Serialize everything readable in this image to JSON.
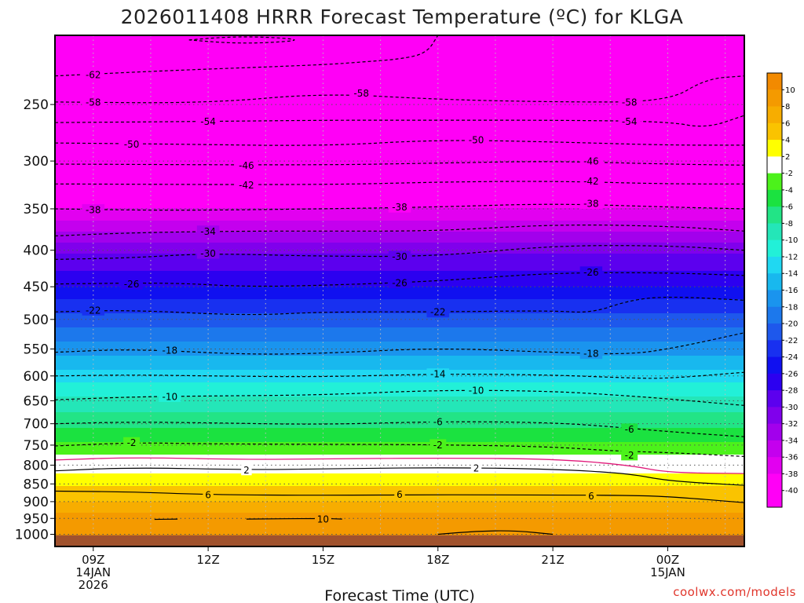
{
  "chart_data": {
    "type": "heatmap",
    "title": "2026011408 HRRR Forecast Temperature (ºC) for KLGA",
    "xlabel": "Forecast Time (UTC)",
    "ylabel": "",
    "credit": "coolwx.com/models",
    "x_range_hours": [
      8,
      26
    ],
    "x_ticks": [
      {
        "hour": 9,
        "lines": [
          "09Z",
          "14JAN",
          "2026"
        ]
      },
      {
        "hour": 12,
        "lines": [
          "12Z"
        ]
      },
      {
        "hour": 15,
        "lines": [
          "15Z"
        ]
      },
      {
        "hour": 18,
        "lines": [
          "18Z"
        ]
      },
      {
        "hour": 21,
        "lines": [
          "21Z"
        ]
      },
      {
        "hour": 24,
        "lines": [
          "00Z",
          "15JAN"
        ]
      }
    ],
    "y_axis": {
      "scale": "log-pressure",
      "inverted": true,
      "range_hpa": [
        1040,
        200
      ]
    },
    "y_ticks": [
      250,
      300,
      350,
      400,
      450,
      500,
      550,
      600,
      650,
      700,
      750,
      800,
      850,
      900,
      950,
      1000
    ],
    "colorbar": {
      "ticks": [
        10,
        8,
        6,
        4,
        2,
        -2,
        -4,
        -6,
        -8,
        -10,
        -12,
        -14,
        -16,
        -18,
        -20,
        -22,
        -24,
        -26,
        -28,
        -30,
        -32,
        -34,
        -36,
        -38,
        -40
      ],
      "colors": [
        "#f28a00",
        "#f49a00",
        "#f7ad00",
        "#fac300",
        "#ffff00",
        "#ffffff",
        "#4cf21b",
        "#1be240",
        "#22e486",
        "#24e6b8",
        "#22f0d8",
        "#20d8f2",
        "#18b8ee",
        "#1a94ee",
        "#1c78ec",
        "#1e58ec",
        "#1830f0",
        "#1010f0",
        "#2c00f0",
        "#5c00ee",
        "#8000ec",
        "#a200ec",
        "#c400ee",
        "#e200f0",
        "#ff00f6"
      ]
    },
    "levels": [
      {
        "p": 1000,
        "t": 9.0
      },
      {
        "p": 975,
        "t": 9.5
      },
      {
        "p": 950,
        "t": 9.0
      },
      {
        "p": 925,
        "t": 7.5
      },
      {
        "p": 900,
        "t": 6.0
      },
      {
        "p": 875,
        "t": 5.0
      },
      {
        "p": 850,
        "t": 3.8
      },
      {
        "p": 825,
        "t": 2.5
      },
      {
        "p": 800,
        "t": 0.0
      },
      {
        "p": 775,
        "t": -2.0
      },
      {
        "p": 750,
        "t": -3.5
      },
      {
        "p": 725,
        "t": -5.0
      },
      {
        "p": 700,
        "t": -6.5
      },
      {
        "p": 650,
        "t": -9.5
      },
      {
        "p": 600,
        "t": -13.0
      },
      {
        "p": 550,
        "t": -17.0
      },
      {
        "p": 500,
        "t": -21.0
      },
      {
        "p": 450,
        "t": -26.0
      },
      {
        "p": 400,
        "t": -30.5
      },
      {
        "p": 350,
        "t": -38.0
      },
      {
        "p": 300,
        "t": -46.0
      },
      {
        "p": 250,
        "t": -57.0
      },
      {
        "p": 200,
        "t": -62.0
      }
    ],
    "contours": [
      {
        "value": 10,
        "style": "solid",
        "points": [
          [
            10.6,
            953
          ],
          [
            11.2,
            952
          ]
        ],
        "labels": []
      },
      {
        "value": 10,
        "style": "solid",
        "points": [
          [
            13.0,
            952
          ],
          [
            15.0,
            950
          ],
          [
            15.5,
            952
          ]
        ],
        "labels": [
          {
            "hour": 15.0,
            "p": 952
          }
        ]
      },
      {
        "value": 10,
        "style": "solid",
        "points": [
          [
            18.0,
            1000
          ],
          [
            19.0,
            990
          ],
          [
            20.0,
            988
          ],
          [
            21.0,
            1000
          ]
        ],
        "labels": []
      },
      {
        "value": 6,
        "style": "solid",
        "points": [
          [
            8,
            870
          ],
          [
            10,
            872
          ],
          [
            12,
            880
          ],
          [
            15,
            882
          ],
          [
            18,
            880
          ],
          [
            21,
            881
          ],
          [
            23,
            882
          ],
          [
            24,
            885
          ],
          [
            26,
            903
          ]
        ],
        "labels": [
          {
            "hour": 12.0,
            "p": 880
          },
          {
            "hour": 17.0,
            "p": 879
          },
          {
            "hour": 22.0,
            "p": 883
          }
        ]
      },
      {
        "value": 2,
        "style": "solid",
        "points": [
          [
            8,
            815
          ],
          [
            10,
            806
          ],
          [
            13,
            812
          ],
          [
            15,
            810
          ],
          [
            18,
            806
          ],
          [
            21,
            810
          ],
          [
            23,
            822
          ],
          [
            24,
            842
          ],
          [
            26,
            854
          ]
        ],
        "labels": [
          {
            "hour": 13.0,
            "p": 812
          },
          {
            "hour": 19.0,
            "p": 807
          }
        ]
      },
      {
        "value": 0,
        "style": "magenta",
        "points": [
          [
            8,
            787
          ],
          [
            10,
            780
          ],
          [
            13,
            786
          ],
          [
            15,
            784
          ],
          [
            18,
            782
          ],
          [
            21,
            784
          ],
          [
            23,
            800
          ],
          [
            24,
            820
          ],
          [
            26,
            822
          ]
        ],
        "labels": []
      },
      {
        "value": -2,
        "style": "dashed",
        "points": [
          [
            8,
            752
          ],
          [
            10,
            744
          ],
          [
            12,
            747
          ],
          [
            15,
            748
          ],
          [
            18,
            749
          ],
          [
            21,
            754
          ],
          [
            22.5,
            764
          ],
          [
            24,
            768
          ],
          [
            26,
            778
          ]
        ],
        "labels": [
          {
            "hour": 10.0,
            "p": 744
          },
          {
            "hour": 18.0,
            "p": 749
          },
          {
            "hour": 23.0,
            "p": 774
          }
        ]
      },
      {
        "value": -6,
        "style": "dashed",
        "points": [
          [
            8,
            700
          ],
          [
            10,
            696
          ],
          [
            12,
            698
          ],
          [
            15,
            702
          ],
          [
            18,
            695
          ],
          [
            21,
            697
          ],
          [
            23,
            710
          ],
          [
            24,
            718
          ],
          [
            26,
            730
          ]
        ],
        "labels": [
          {
            "hour": 18.0,
            "p": 695
          },
          {
            "hour": 23.0,
            "p": 712
          }
        ]
      },
      {
        "value": -10,
        "style": "dashed",
        "points": [
          [
            8,
            648
          ],
          [
            10,
            642
          ],
          [
            12,
            640
          ],
          [
            15,
            638
          ],
          [
            18,
            628
          ],
          [
            21,
            630
          ],
          [
            23,
            640
          ],
          [
            24,
            646
          ],
          [
            26,
            660
          ]
        ],
        "labels": [
          {
            "hour": 11.0,
            "p": 641
          },
          {
            "hour": 19.0,
            "p": 628
          }
        ]
      },
      {
        "value": -14,
        "style": "dashed",
        "points": [
          [
            8,
            600
          ],
          [
            10,
            598
          ],
          [
            12,
            600
          ],
          [
            15,
            602
          ],
          [
            18,
            596
          ],
          [
            21,
            598
          ],
          [
            23,
            604
          ],
          [
            24,
            605
          ],
          [
            26,
            593
          ]
        ],
        "labels": [
          {
            "hour": 18.0,
            "p": 596
          }
        ]
      },
      {
        "value": -18,
        "style": "dashed",
        "points": [
          [
            8,
            556
          ],
          [
            10,
            550
          ],
          [
            13,
            560
          ],
          [
            15,
            558
          ],
          [
            18,
            548
          ],
          [
            21,
            556
          ],
          [
            23,
            560
          ],
          [
            24.2,
            548
          ],
          [
            26,
            522
          ]
        ],
        "labels": [
          {
            "hour": 11.0,
            "p": 552
          },
          {
            "hour": 22.0,
            "p": 558
          }
        ]
      },
      {
        "value": -22,
        "style": "dashed",
        "points": [
          [
            8,
            488
          ],
          [
            10,
            485
          ],
          [
            13,
            494
          ],
          [
            15,
            488
          ],
          [
            18,
            488
          ],
          [
            21,
            486
          ],
          [
            22,
            490
          ],
          [
            23,
            470
          ],
          [
            24,
            464
          ],
          [
            26,
            470
          ]
        ],
        "labels": [
          {
            "hour": 9.0,
            "p": 485
          },
          {
            "hour": 18.0,
            "p": 488
          }
        ]
      },
      {
        "value": -26,
        "style": "dashed",
        "points": [
          [
            8,
            446
          ],
          [
            11,
            444
          ],
          [
            13,
            450
          ],
          [
            15,
            448
          ],
          [
            18,
            442
          ],
          [
            21,
            430
          ],
          [
            24,
            430
          ],
          [
            26,
            434
          ]
        ],
        "labels": [
          {
            "hour": 10.0,
            "p": 446
          },
          {
            "hour": 17.0,
            "p": 444
          },
          {
            "hour": 22.0,
            "p": 429
          }
        ]
      },
      {
        "value": -30,
        "style": "dashed",
        "points": [
          [
            8,
            412
          ],
          [
            10,
            410
          ],
          [
            12,
            404
          ],
          [
            15,
            408
          ],
          [
            18,
            408
          ],
          [
            21,
            394
          ],
          [
            24,
            394
          ],
          [
            26,
            400
          ]
        ],
        "labels": [
          {
            "hour": 12.0,
            "p": 404
          },
          {
            "hour": 17.0,
            "p": 408
          }
        ]
      },
      {
        "value": -34,
        "style": "dashed",
        "points": [
          [
            8,
            382
          ],
          [
            10,
            378
          ],
          [
            13,
            376
          ],
          [
            15,
            376
          ],
          [
            18,
            376
          ],
          [
            21,
            368
          ],
          [
            24,
            370
          ],
          [
            26,
            376
          ]
        ],
        "labels": [
          {
            "hour": 12.0,
            "p": 376
          }
        ]
      },
      {
        "value": -38,
        "style": "dashed",
        "points": [
          [
            8,
            350
          ],
          [
            11,
            352
          ],
          [
            15,
            350
          ],
          [
            18,
            348
          ],
          [
            21,
            344
          ],
          [
            24,
            348
          ],
          [
            26,
            350
          ]
        ],
        "labels": [
          {
            "hour": 9.0,
            "p": 351
          },
          {
            "hour": 17.0,
            "p": 348
          },
          {
            "hour": 22.0,
            "p": 344
          }
        ]
      },
      {
        "value": -42,
        "style": "dashed",
        "points": [
          [
            8,
            323
          ],
          [
            15,
            324
          ],
          [
            18,
            321
          ],
          [
            21,
            320
          ],
          [
            24,
            323
          ],
          [
            26,
            323
          ]
        ],
        "labels": [
          {
            "hour": 13.0,
            "p": 324
          },
          {
            "hour": 22.0,
            "p": 320
          }
        ]
      },
      {
        "value": -46,
        "style": "dashed",
        "points": [
          [
            8,
            303
          ],
          [
            15,
            304
          ],
          [
            18,
            302
          ],
          [
            21,
            300
          ],
          [
            24,
            303
          ],
          [
            26,
            304
          ]
        ],
        "labels": [
          {
            "hour": 13.0,
            "p": 304
          },
          {
            "hour": 22.0,
            "p": 300
          }
        ]
      },
      {
        "value": -50,
        "style": "dashed",
        "points": [
          [
            8,
            283
          ],
          [
            11,
            284
          ],
          [
            15,
            286
          ],
          [
            18,
            280
          ],
          [
            21,
            282
          ],
          [
            24,
            285
          ],
          [
            26,
            285
          ]
        ],
        "labels": [
          {
            "hour": 10.0,
            "p": 284
          },
          {
            "hour": 19.0,
            "p": 280
          }
        ]
      },
      {
        "value": -54,
        "style": "dashed",
        "points": [
          [
            8,
            265
          ],
          [
            12,
            264
          ],
          [
            15,
            263
          ],
          [
            18,
            263
          ],
          [
            21,
            263
          ],
          [
            24,
            264
          ],
          [
            25,
            270
          ],
          [
            26,
            259
          ]
        ],
        "labels": [
          {
            "hour": 12.0,
            "p": 264
          },
          {
            "hour": 23.0,
            "p": 264
          }
        ]
      },
      {
        "value": -58,
        "style": "dashed",
        "points": [
          [
            8,
            248
          ],
          [
            12,
            249
          ],
          [
            15,
            241
          ],
          [
            18,
            246
          ],
          [
            21,
            248
          ],
          [
            24,
            248
          ],
          [
            25,
            230
          ],
          [
            26,
            228
          ]
        ],
        "labels": [
          {
            "hour": 9.0,
            "p": 248
          },
          {
            "hour": 16.0,
            "p": 241
          },
          {
            "hour": 23.0,
            "p": 248
          }
        ]
      },
      {
        "value": -62,
        "style": "dashed",
        "points": [
          [
            8,
            228
          ],
          [
            11,
            224
          ],
          [
            15,
            220
          ],
          [
            16,
            218
          ],
          [
            17,
            216
          ],
          [
            17.7,
            212
          ],
          [
            18,
            200
          ]
        ],
        "labels": [
          {
            "hour": 9.0,
            "p": 227
          }
        ]
      },
      {
        "value": -62,
        "style": "dashed",
        "points": [
          [
            11.5,
            203
          ],
          [
            12.5,
            201
          ],
          [
            13.5,
            201
          ],
          [
            14.5,
            203
          ],
          [
            13.5,
            205
          ],
          [
            12.5,
            205
          ],
          [
            11.5,
            203
          ]
        ],
        "labels": []
      }
    ]
  }
}
